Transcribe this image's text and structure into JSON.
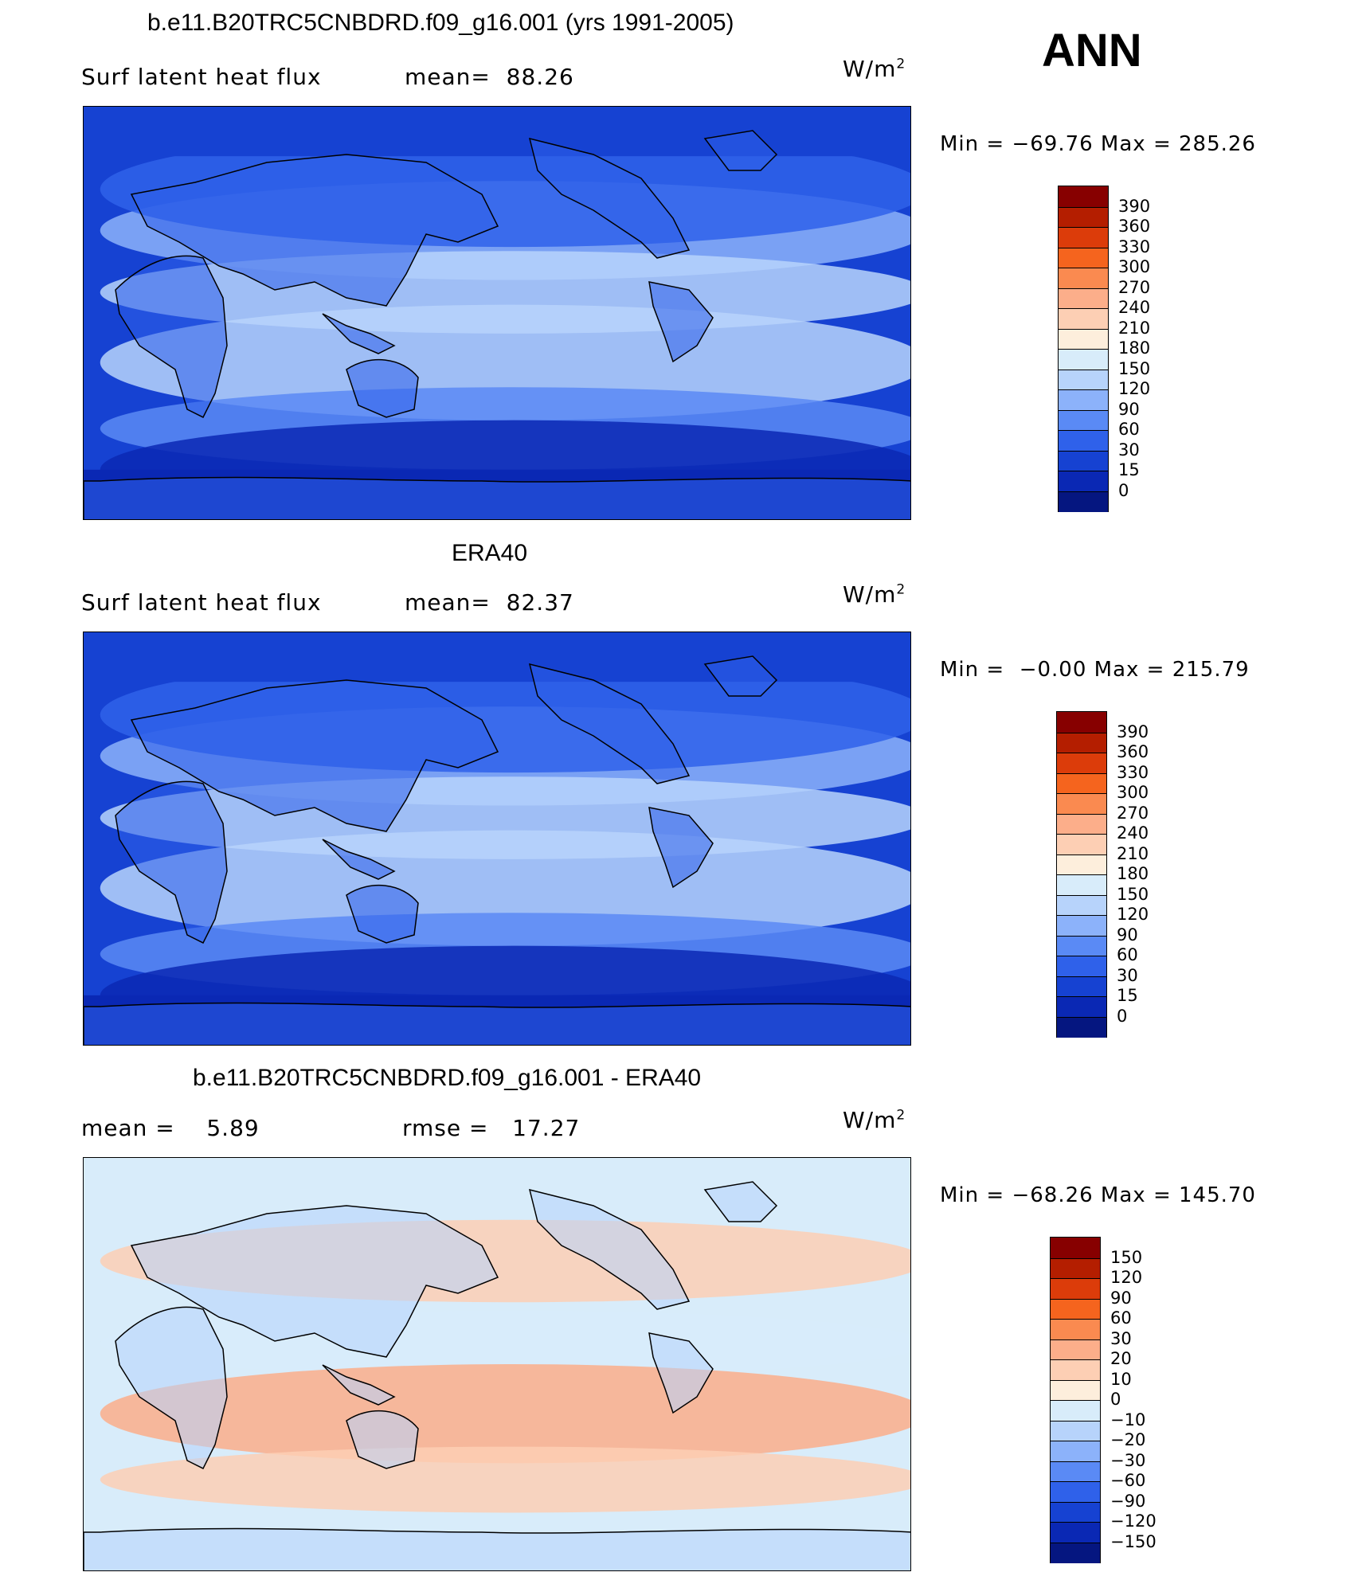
{
  "season": "ANN",
  "panels": [
    {
      "id": "model",
      "title": "b.e11.B20TRC5CNBDRD.f09_g16.001 (yrs 1991-2005)",
      "left_text": "Surf latent heat flux",
      "mid_text": "mean=  88.26",
      "units": "W/m",
      "units_sup": "2",
      "minmax": "Min = −69.76 Max = 285.26",
      "colorbar": {
        "labels": [
          "390",
          "360",
          "330",
          "300",
          "270",
          "240",
          "210",
          "180",
          "150",
          "120",
          "90",
          "60",
          "30",
          "15",
          "0"
        ],
        "colors": [
          "#870000",
          "#b41e00",
          "#dc3c0a",
          "#f5641e",
          "#fa8a50",
          "#fcae8a",
          "#fdcfb4",
          "#fdeedc",
          "#d8ecfa",
          "#b7d3fb",
          "#8cb2fa",
          "#5a8af5",
          "#2f61ea",
          "#1642d2",
          "#0a28b4",
          "#051680"
        ]
      }
    },
    {
      "id": "obs",
      "title": "ERA40",
      "left_text": "Surf latent heat flux",
      "mid_text": "mean=  82.37",
      "units": "W/m",
      "units_sup": "2",
      "minmax": "Min =  −0.00 Max = 215.79",
      "colorbar": {
        "labels": [
          "390",
          "360",
          "330",
          "300",
          "270",
          "240",
          "210",
          "180",
          "150",
          "120",
          "90",
          "60",
          "30",
          "15",
          "0"
        ],
        "colors": [
          "#870000",
          "#b41e00",
          "#dc3c0a",
          "#f5641e",
          "#fa8a50",
          "#fcae8a",
          "#fdcfb4",
          "#fdeedc",
          "#d8ecfa",
          "#b7d3fb",
          "#8cb2fa",
          "#5a8af5",
          "#2f61ea",
          "#1642d2",
          "#0a28b4",
          "#051680"
        ]
      }
    },
    {
      "id": "diff",
      "title": "b.e11.B20TRC5CNBDRD.f09_g16.001 - ERA40",
      "left_text": "mean =    5.89",
      "mid_text": "rmse =   17.27",
      "units": "W/m",
      "units_sup": "2",
      "minmax": "Min = −68.26 Max = 145.70",
      "colorbar": {
        "labels": [
          "150",
          "120",
          "90",
          "60",
          "30",
          "20",
          "10",
          "0",
          "−10",
          "−20",
          "−30",
          "−60",
          "−90",
          "−120",
          "−150"
        ],
        "colors": [
          "#870000",
          "#b41e00",
          "#dc3c0a",
          "#f5641e",
          "#fa8a50",
          "#fcae8a",
          "#fdcfb4",
          "#fdeedc",
          "#d8ecfa",
          "#b7d3fb",
          "#8cb2fa",
          "#5a8af5",
          "#2f61ea",
          "#1642d2",
          "#0a28b4",
          "#051680"
        ]
      }
    }
  ]
}
